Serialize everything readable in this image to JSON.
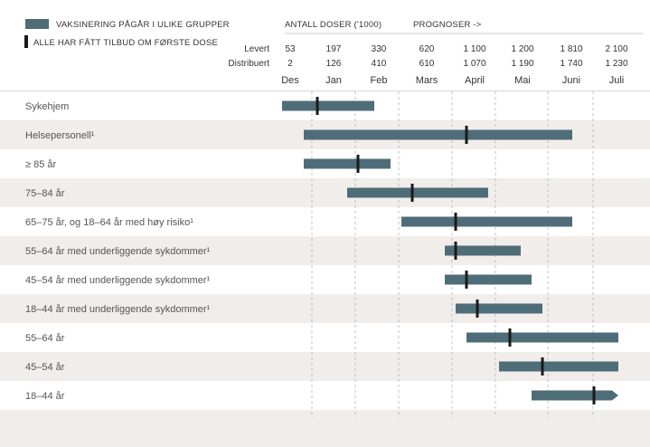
{
  "legend": {
    "bar_label": "VAKSINERING PÅGÅR I ULIKE GRUPPER",
    "marker_label": "ALLE HAR FÅTT TILBUD OM FØRSTE DOSE",
    "bar_color": "#4f6d78",
    "marker_color": "#1a1a1a"
  },
  "header": {
    "doses_title": "ANTALL DOSER ('1000)",
    "forecast_title": "PROGNOSER ->"
  },
  "chart_data": {
    "type": "gantt",
    "months": [
      "Des",
      "Jan",
      "Feb",
      "Mars",
      "April",
      "Mai",
      "Juni",
      "Juli"
    ],
    "doses": [
      {
        "label": "Levert",
        "values": [
          "53",
          "197",
          "330",
          "620",
          "1 100",
          "1 200",
          "1 810",
          "2 100"
        ]
      },
      {
        "label": "Distribuert",
        "values": [
          "2",
          "126",
          "410",
          "610",
          "1 070",
          "1 190",
          "1 740",
          "1 230"
        ]
      }
    ],
    "x_unit": "months from start of December (0 = 1 Dec, 8 = end of July)",
    "rows": [
      {
        "label": "Sykehjem",
        "start": 0.25,
        "end": 1.95,
        "marker": 0.9
      },
      {
        "label": "Helsepersonell¹",
        "start": 0.65,
        "end": 5.6,
        "marker": 3.65
      },
      {
        "label": "≥ 85 år",
        "start": 0.65,
        "end": 2.25,
        "marker": 1.65
      },
      {
        "label": "75–84 år",
        "start": 1.45,
        "end": 4.05,
        "marker": 2.65
      },
      {
        "label": "65–75 år, og 18–64 år med høy risiko¹",
        "start": 2.45,
        "end": 5.6,
        "marker": 3.45
      },
      {
        "label": "55–64 år med underliggende sykdommer¹",
        "start": 3.25,
        "end": 4.65,
        "marker": 3.45
      },
      {
        "label": "45–54 år med underliggende sykdommer¹",
        "start": 3.25,
        "end": 4.85,
        "marker": 3.65
      },
      {
        "label": "18–44 år med underliggende sykdommer¹",
        "start": 3.45,
        "end": 5.05,
        "marker": 3.85
      },
      {
        "label": "55–64 år",
        "start": 3.65,
        "end": 6.45,
        "marker": 4.45
      },
      {
        "label": "45–54 år",
        "start": 4.25,
        "end": 6.45,
        "marker": 5.05
      },
      {
        "label": "18–44 år",
        "start": 4.85,
        "end": 6.45,
        "marker": 6.0,
        "arrow": true
      }
    ]
  }
}
